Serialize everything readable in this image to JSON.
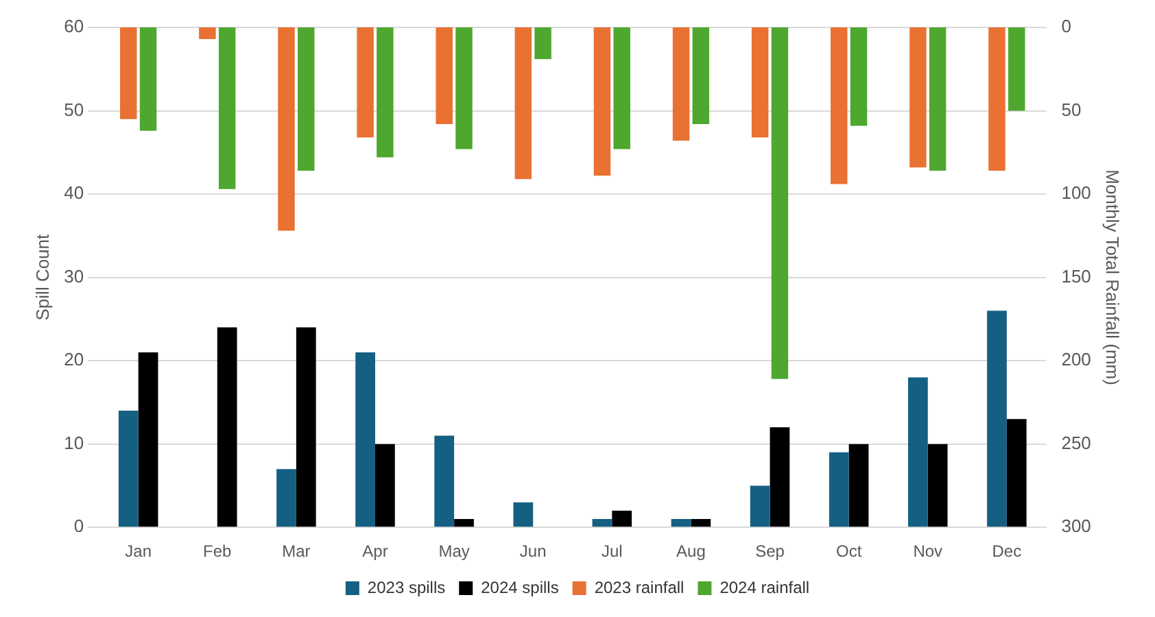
{
  "chart_data": {
    "type": "bar",
    "categories": [
      "Jan",
      "Feb",
      "Mar",
      "Apr",
      "May",
      "Jun",
      "Jul",
      "Aug",
      "Sep",
      "Oct",
      "Nov",
      "Dec"
    ],
    "series": [
      {
        "name": "2023 spills",
        "color": "#156082",
        "values": [
          14,
          0,
          7,
          21,
          11,
          3,
          1,
          1,
          5,
          9,
          18,
          26
        ]
      },
      {
        "name": "2024 spills",
        "color": "#000000",
        "values": [
          21,
          24,
          24,
          10,
          1,
          0,
          2,
          1,
          12,
          10,
          10,
          13
        ]
      },
      {
        "name": "2023 rainfall",
        "color": "#e97132",
        "axis": "y2",
        "values": [
          55,
          7,
          122,
          66,
          58,
          91,
          89,
          68,
          66,
          94,
          84,
          86
        ]
      },
      {
        "name": "2024 rainfall",
        "color": "#4ea72e",
        "axis": "y2",
        "values": [
          62,
          97,
          86,
          78,
          73,
          19,
          73,
          58,
          211,
          59,
          86,
          50
        ]
      }
    ],
    "ylabel": "Spill Count",
    "y2label": "Monthly Total Rainfall (mm)",
    "ylim": [
      0,
      60
    ],
    "yticks": [
      0,
      10,
      20,
      30,
      40,
      50,
      60
    ],
    "y2lim": [
      300,
      0
    ],
    "y2ticks": [
      0,
      50,
      100,
      150,
      200,
      250,
      300
    ],
    "grid": "y",
    "legend": "bottom"
  }
}
